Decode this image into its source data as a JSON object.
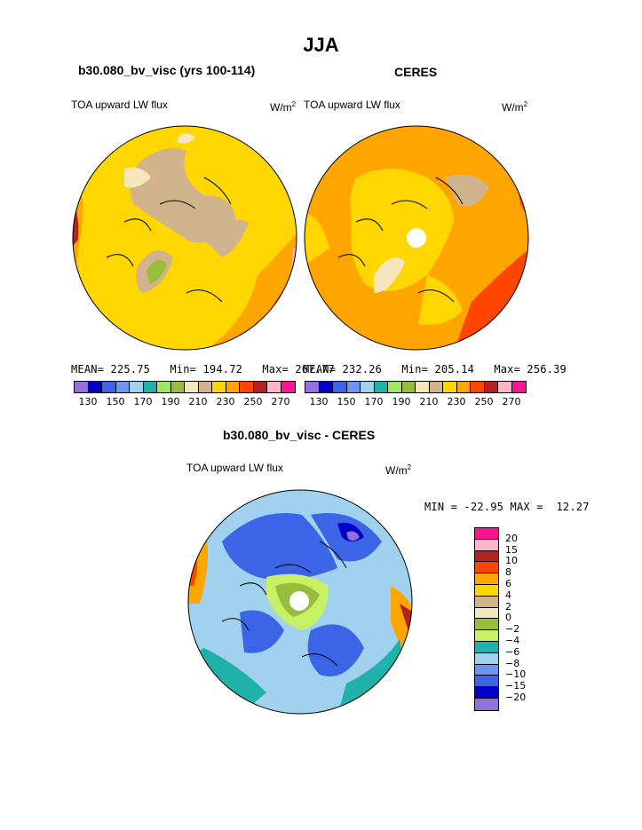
{
  "main_title": "JJA",
  "panels": [
    {
      "title": "b30.080_bv_visc (yrs 100-114)",
      "variable": "TOA upward LW flux",
      "units_base": "W/m",
      "units_exp": "2",
      "stats": "MEAN= 225.75   Min= 194.72   Max= 267.77"
    },
    {
      "title": "CERES",
      "variable": "TOA upward LW flux",
      "units_base": "W/m",
      "units_exp": "2",
      "stats": "MEAN= 232.26   Min= 205.14   Max= 256.39"
    }
  ],
  "diff_panel": {
    "title": "b30.080_bv_visc - CERES",
    "variable": "TOA upward LW flux",
    "units_base": "W/m",
    "units_exp": "2",
    "minmax": "MIN = -22.95 MAX =  12.27"
  },
  "colorbar_abs": {
    "colors": [
      "#9370db",
      "#0000c8",
      "#3c64e6",
      "#6e96f0",
      "#a0d2f0",
      "#20b2aa",
      "#a0e664",
      "#96be3c",
      "#f5e6be",
      "#d2b48c",
      "#ffd700",
      "#ffa500",
      "#ff4500",
      "#b22222",
      "#ffb4c8",
      "#ff1493"
    ],
    "labels": [
      "130",
      "150",
      "170",
      "190",
      "210",
      "230",
      "250",
      "270"
    ]
  },
  "colorbar_diff": {
    "colors": [
      "#ff1493",
      "#ffb4c8",
      "#b22222",
      "#ff4500",
      "#ffa500",
      "#ffd700",
      "#d2b48c",
      "#f5e6be",
      "#96be3c",
      "#c8f064",
      "#20b2aa",
      "#a0d2f0",
      "#6e96f0",
      "#3c64e6",
      "#0000c8",
      "#9370db"
    ],
    "labels": [
      "20",
      "15",
      "10",
      "8",
      "6",
      "4",
      "2",
      "0",
      "−2",
      "−4",
      "−6",
      "−8",
      "−10",
      "−15",
      "−20"
    ]
  }
}
